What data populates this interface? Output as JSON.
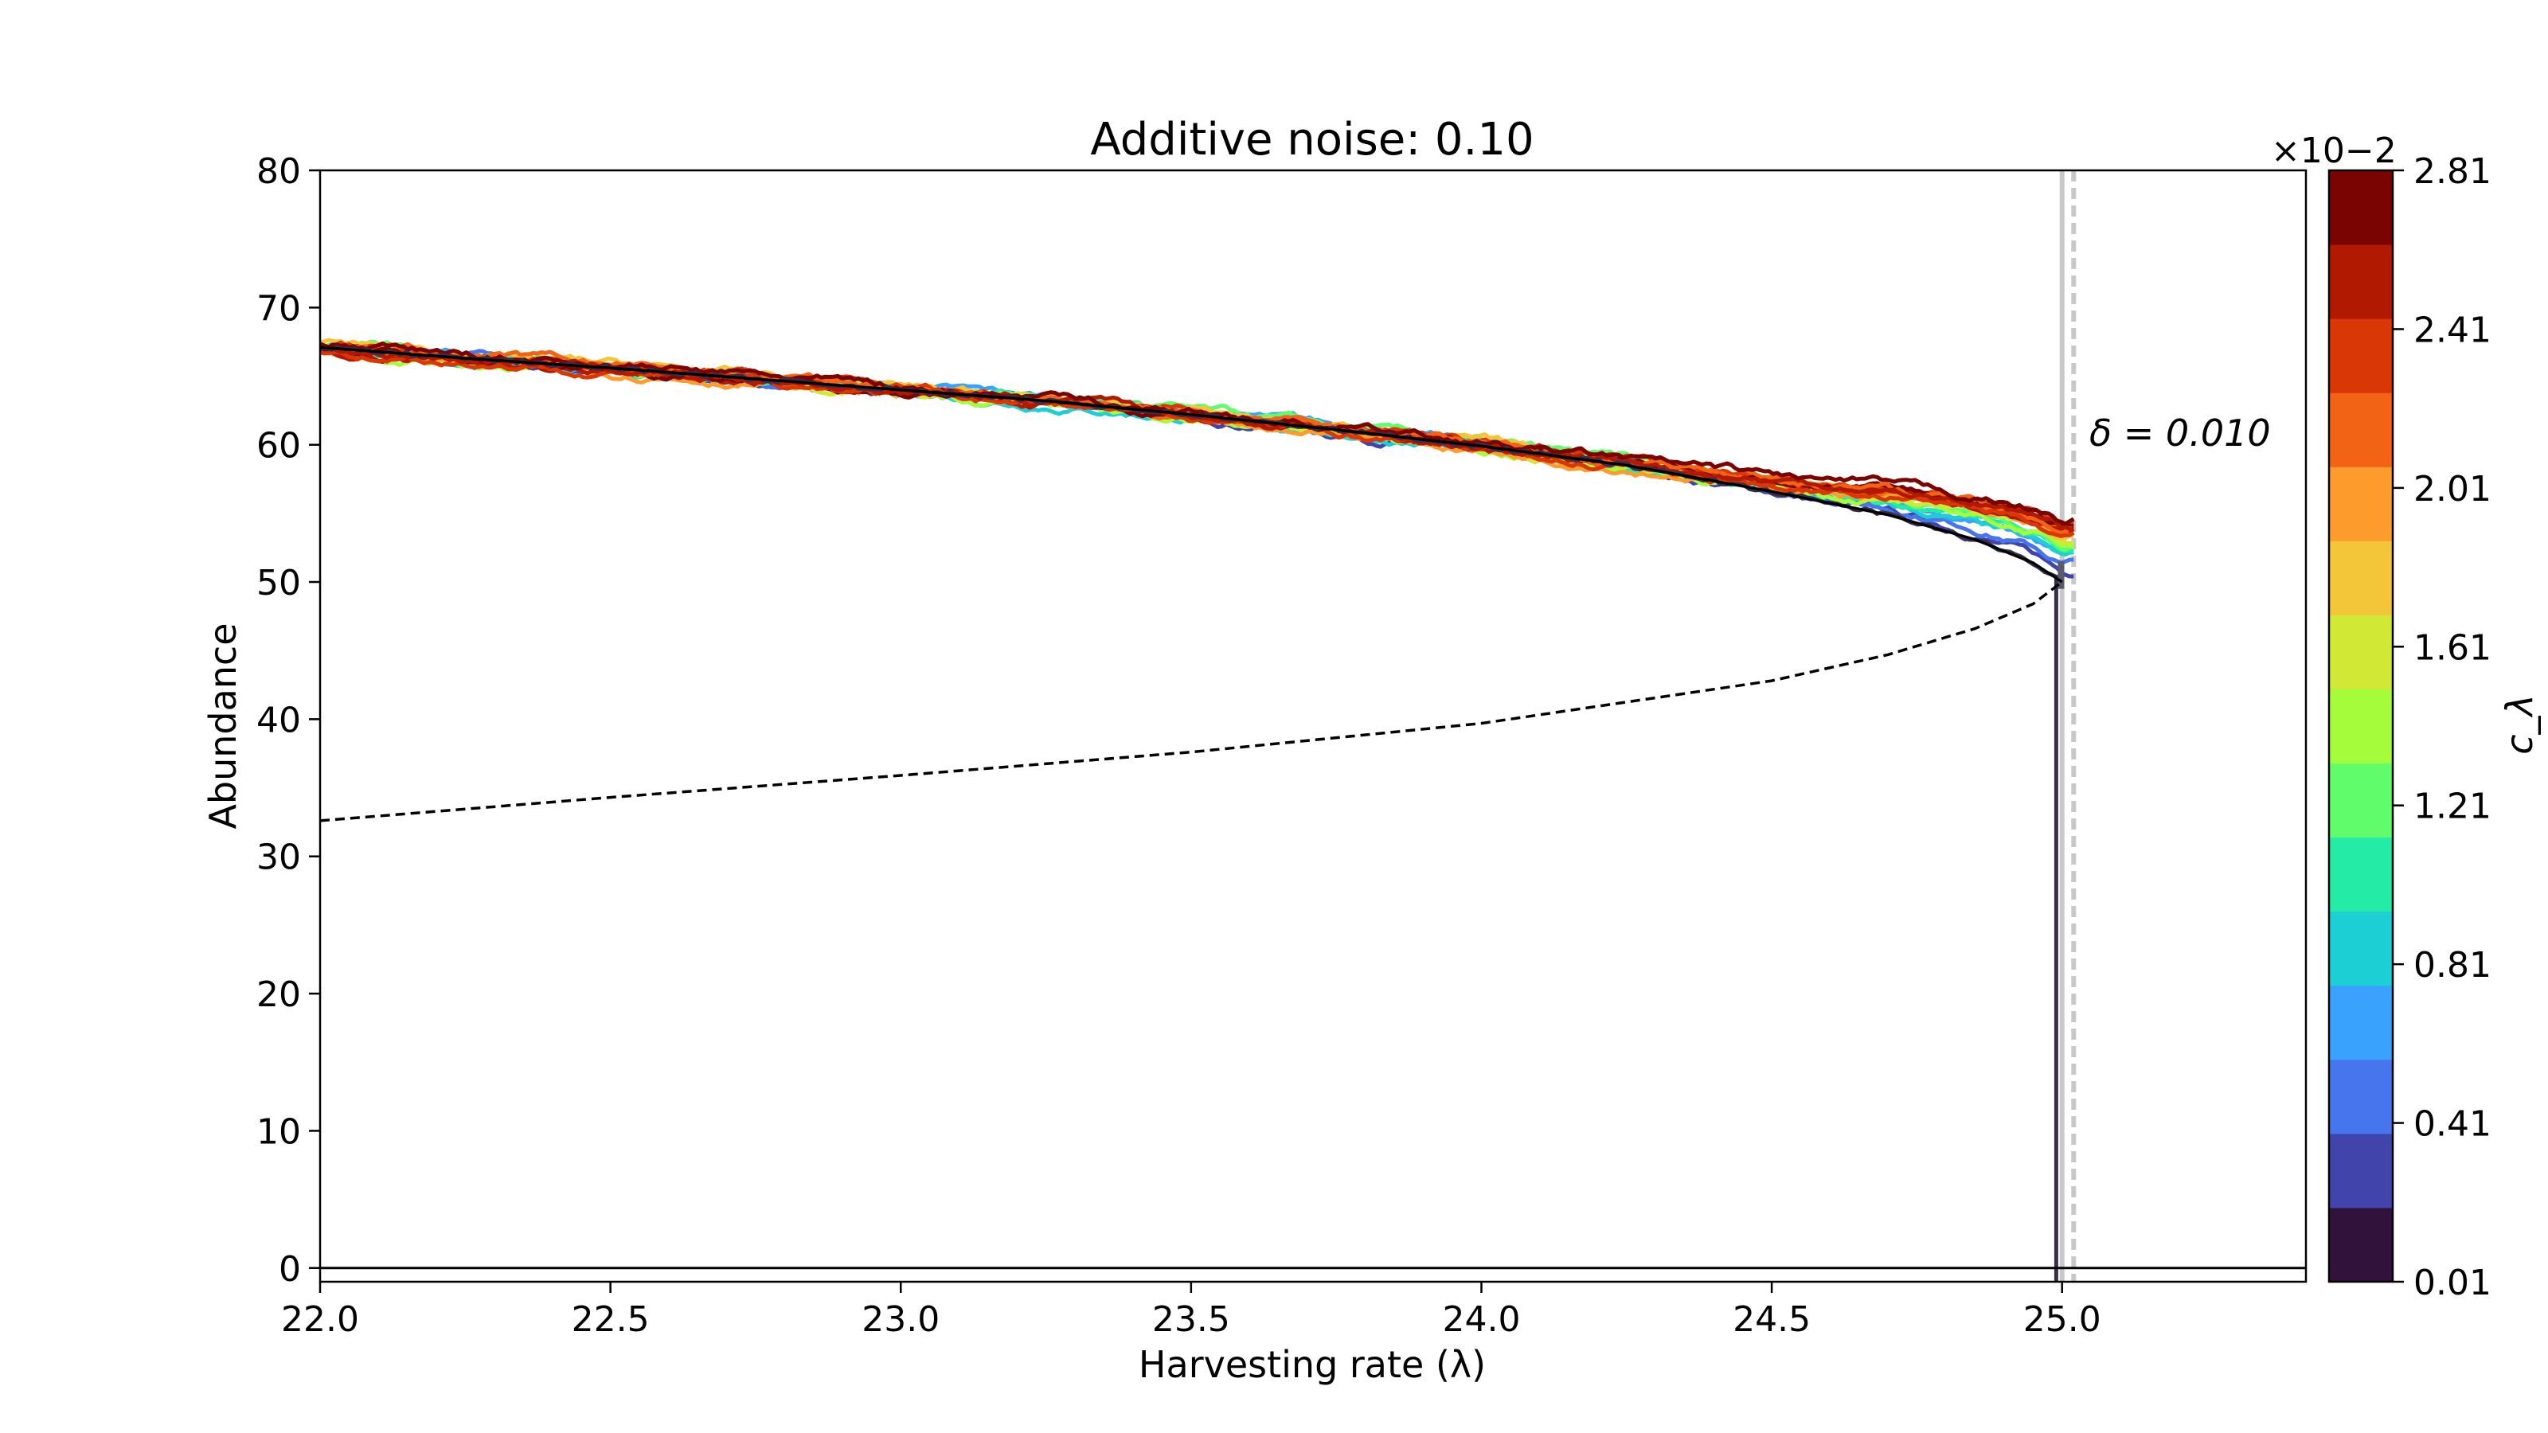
{
  "chart_data": {
    "type": "line",
    "title": "Additive noise: 0.10",
    "xlabel": "Harvesting rate (λ)",
    "ylabel": "Abundance",
    "xlim": [
      22.0,
      25.42
    ],
    "ylim": [
      -1,
      80
    ],
    "xticks": [
      "22.0",
      "22.5",
      "23.0",
      "23.5",
      "24.0",
      "24.5",
      "25.0"
    ],
    "xtick_values": [
      22.0,
      22.5,
      23.0,
      23.5,
      24.0,
      24.5,
      25.0
    ],
    "yticks": [
      "0",
      "10",
      "20",
      "30",
      "40",
      "50",
      "60",
      "70",
      "80"
    ],
    "ytick_values": [
      0,
      10,
      20,
      30,
      40,
      50,
      60,
      70,
      80
    ],
    "annotation": "δ = 0.010",
    "critical_lambda": 25.0,
    "grid": false,
    "series": [
      {
        "style": "solid black",
        "x": [
          22.0,
          22.25,
          22.5,
          22.75,
          23.0,
          23.25,
          23.5,
          23.75,
          24.0,
          24.25,
          24.5,
          24.7,
          24.85,
          24.95,
          25.0
        ],
        "y": [
          67.1,
          66.3,
          65.6,
          64.8,
          64.0,
          63.2,
          62.2,
          61.1,
          59.9,
          58.5,
          56.6,
          54.9,
          53.1,
          51.4,
          50.0
        ]
      },
      {
        "style": "dashed black",
        "x": [
          22.0,
          22.5,
          23.0,
          23.5,
          24.0,
          24.5,
          24.7,
          24.85,
          24.95,
          25.0
        ],
        "y": [
          32.6,
          34.3,
          35.9,
          37.6,
          39.7,
          42.8,
          44.7,
          46.6,
          48.4,
          50.0
        ]
      },
      {
        "style": "solid black baseline",
        "x": [
          22.0,
          25.42
        ],
        "y": [
          0,
          0
        ]
      }
    ],
    "colorbar": {
      "label": "c_λ",
      "multiplier": "×10−2",
      "ticks": [
        "0.01",
        "0.41",
        "0.81",
        "1.21",
        "1.61",
        "2.01",
        "2.41",
        "2.81"
      ],
      "tick_values": [
        0.01,
        0.41,
        0.81,
        1.21,
        1.61,
        2.01,
        2.41,
        2.81
      ],
      "range": [
        0.01,
        2.81
      ],
      "colors": [
        "#30123b",
        "#4145ab",
        "#4675ed",
        "#39a2fc",
        "#1bcfd4",
        "#24eca6",
        "#61fc6c",
        "#a4fc3b",
        "#d1e834",
        "#f3c63a",
        "#fe9b2d",
        "#f36315",
        "#d93806",
        "#b11901",
        "#7a0402"
      ]
    },
    "trajectory_ends": [
      {
        "c": 0.21,
        "lambda_end": 25.02,
        "y_end": 51.0
      },
      {
        "c": 0.41,
        "lambda_end": 25.02,
        "y_end": 51.4
      },
      {
        "c": 0.61,
        "lambda_end": 25.02,
        "y_end": 51.7
      },
      {
        "c": 0.81,
        "lambda_end": 25.02,
        "y_end": 52.0
      },
      {
        "c": 1.01,
        "lambda_end": 25.02,
        "y_end": 52.3
      },
      {
        "c": 1.21,
        "lambda_end": 25.02,
        "y_end": 52.6
      },
      {
        "c": 1.41,
        "lambda_end": 25.02,
        "y_end": 52.9
      },
      {
        "c": 1.61,
        "lambda_end": 25.02,
        "y_end": 53.1
      },
      {
        "c": 1.81,
        "lambda_end": 25.02,
        "y_end": 53.3
      },
      {
        "c": 2.01,
        "lambda_end": 25.02,
        "y_end": 53.5
      },
      {
        "c": 2.21,
        "lambda_end": 25.02,
        "y_end": 53.7
      },
      {
        "c": 2.41,
        "lambda_end": 25.02,
        "y_end": 53.9
      },
      {
        "c": 2.61,
        "lambda_end": 25.02,
        "y_end": 54.1
      },
      {
        "c": 2.81,
        "lambda_end": 25.02,
        "y_end": 54.3
      }
    ],
    "collapse_trajectory": {
      "c": 0.01,
      "lambda": 24.99,
      "y_from": 50.0,
      "y_to": -1
    }
  }
}
